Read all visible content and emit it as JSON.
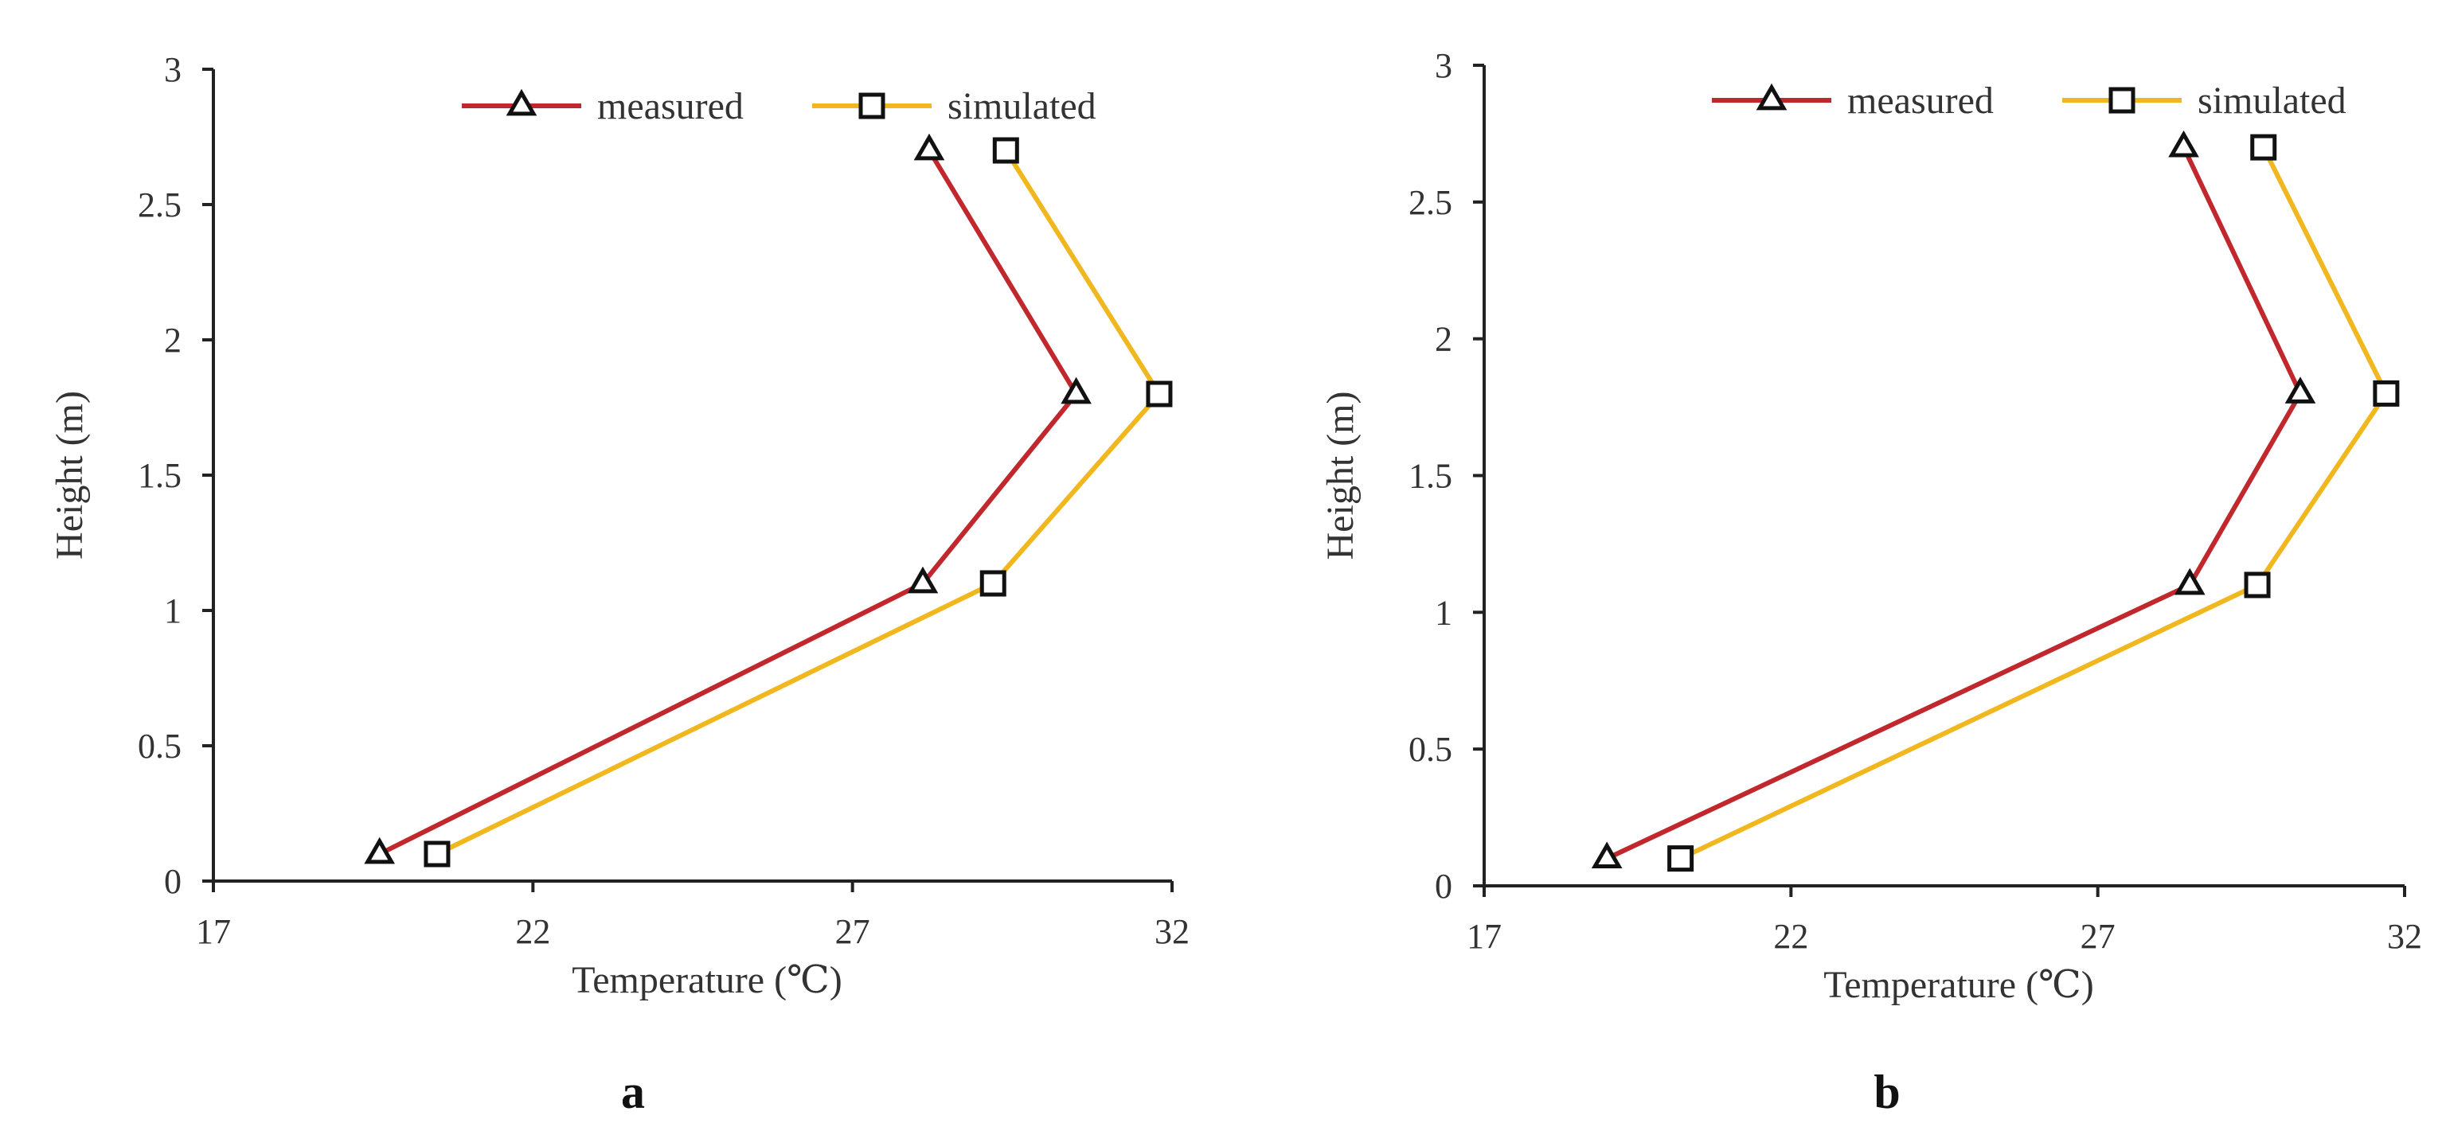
{
  "colors": {
    "measured": "#c0282d",
    "simulated": "#f0b71e",
    "axis": "#222222",
    "text": "#333333"
  },
  "chart_data": [
    {
      "type": "line",
      "panel_label": "a",
      "xlabel": "Temperature (℃)",
      "ylabel": "Height (m)",
      "xlim": [
        17,
        32
      ],
      "ylim": [
        0,
        3
      ],
      "xticks": [
        "17",
        "22",
        "27",
        "32"
      ],
      "yticks": [
        "0",
        "0.5",
        "1",
        "1.5",
        "2",
        "2.5",
        "3"
      ],
      "legend_position": "top-right",
      "grid": false,
      "series": [
        {
          "name": "measured",
          "marker": "triangle",
          "color": "#c0282d",
          "points": [
            [
              19.6,
              0.1
            ],
            [
              28.1,
              1.1
            ],
            [
              30.5,
              1.8
            ],
            [
              28.2,
              2.7
            ]
          ]
        },
        {
          "name": "simulated",
          "marker": "square",
          "color": "#f0b71e",
          "points": [
            [
              20.5,
              0.1
            ],
            [
              29.2,
              1.1
            ],
            [
              31.8,
              1.8
            ],
            [
              29.4,
              2.7
            ]
          ]
        }
      ]
    },
    {
      "type": "line",
      "panel_label": "b",
      "xlabel": "Temperature (℃)",
      "ylabel": "Height (m)",
      "xlim": [
        17,
        32
      ],
      "ylim": [
        0,
        3
      ],
      "xticks": [
        "17",
        "22",
        "27",
        "32"
      ],
      "yticks": [
        "0",
        "0.5",
        "1",
        "1.5",
        "2",
        "2.5",
        "3"
      ],
      "legend_position": "top-right",
      "grid": false,
      "series": [
        {
          "name": "measured",
          "marker": "triangle",
          "color": "#c0282d",
          "points": [
            [
              19.0,
              0.1
            ],
            [
              28.5,
              1.1
            ],
            [
              30.3,
              1.8
            ],
            [
              28.4,
              2.7
            ]
          ]
        },
        {
          "name": "simulated",
          "marker": "square",
          "color": "#f0b71e",
          "points": [
            [
              20.2,
              0.1
            ],
            [
              29.6,
              1.1
            ],
            [
              31.7,
              1.8
            ],
            [
              29.7,
              2.7
            ]
          ]
        }
      ]
    }
  ]
}
